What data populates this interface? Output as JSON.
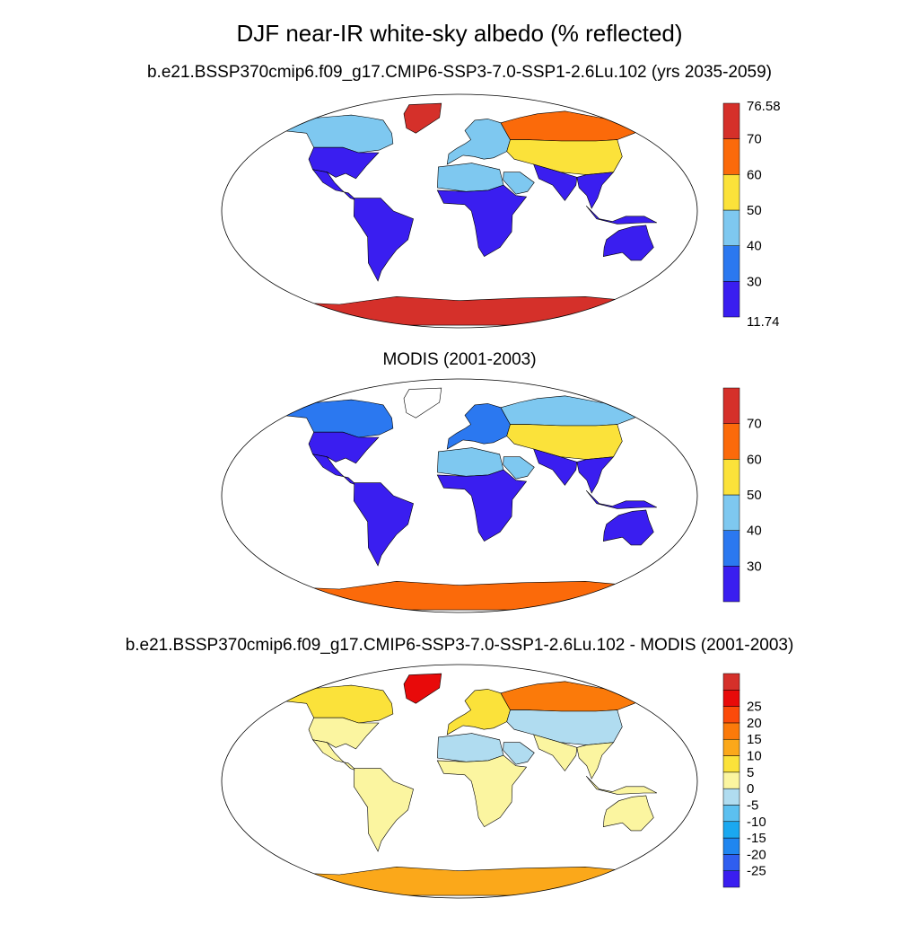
{
  "main_title": "DJF near-IR white-sky albedo (% reflected)",
  "panels": [
    {
      "title": "b.e21.BSSP370cmip6.f09_g17.CMIP6-SSP3-7.0-SSP1-2.6Lu.102 (yrs 2035-2059)",
      "colorbar": {
        "colors": [
          "#3a1ef0",
          "#2b78f0",
          "#7ec8f0",
          "#fbe23a",
          "#fb6a0a",
          "#d5302a"
        ],
        "labels": [
          "11.74",
          "30",
          "40",
          "50",
          "60",
          "70",
          "76.58"
        ]
      }
    },
    {
      "title": "MODIS (2001-2003)",
      "colorbar": {
        "colors": [
          "#3a1ef0",
          "#2b78f0",
          "#7ec8f0",
          "#fbe23a",
          "#fb6a0a",
          "#d5302a"
        ],
        "labels": [
          "30",
          "40",
          "50",
          "60",
          "70"
        ]
      }
    },
    {
      "title": "b.e21.BSSP370cmip6.f09_g17.CMIP6-SSP3-7.0-SSP1-2.6Lu.102 - MODIS (2001-2003)",
      "colorbar": {
        "colors": [
          "#3a1ef0",
          "#2f5ef0",
          "#1f86f0",
          "#1aa8f0",
          "#5cc0f0",
          "#b0dcf0",
          "#fbf5a0",
          "#fbe23a",
          "#fba81a",
          "#fb7a0a",
          "#fb4a0a",
          "#e80a0a",
          "#d5302a"
        ],
        "labels": [
          "-25",
          "-20",
          "-15",
          "-10",
          "-5",
          "0",
          "5",
          "10",
          "15",
          "20",
          "25"
        ]
      }
    }
  ],
  "chart_data": [
    {
      "type": "map",
      "title": "b.e21.BSSP370cmip6.f09_g17.CMIP6-SSP3-7.0-SSP1-2.6Lu.102 (yrs 2035-2059)",
      "projection": "robinson",
      "colorbar_range": [
        11.74,
        76.58
      ],
      "colorbar_levels": [
        30,
        40,
        50,
        60,
        70
      ],
      "regions": {
        "Antarctica": 72,
        "Greenland": 72,
        "Siberia": 62,
        "Central Asia": 52,
        "Sahara": 46,
        "Canada": 40,
        "South America": 15,
        "Central Africa": 15,
        "Australia": 18,
        "Eastern US": 18,
        "India": 18
      }
    },
    {
      "type": "map",
      "title": "MODIS (2001-2003)",
      "projection": "robinson",
      "colorbar_levels": [
        30,
        40,
        50,
        60,
        70
      ],
      "regions": {
        "Antarctica": 62,
        "Greenland": null,
        "Siberia": 42,
        "Central Asia": 52,
        "Sahara": 48,
        "Canada": 38,
        "South America": 15,
        "Central Africa": 15,
        "Australia": 18,
        "Eastern US": 18,
        "India": 18
      }
    },
    {
      "type": "map",
      "title": "b.e21.BSSP370cmip6.f09_g17.CMIP6-SSP3-7.0-SSP1-2.6Lu.102 - MODIS (2001-2003)",
      "projection": "robinson",
      "colorbar_levels": [
        -25,
        -20,
        -15,
        -10,
        -5,
        0,
        5,
        10,
        15,
        20,
        25
      ],
      "regions": {
        "Antarctica": 12,
        "Greenland": 28,
        "Siberia": 17,
        "Central Asia": -3,
        "Sahara": -3,
        "Canada": 8,
        "South America": 3,
        "Central Africa": 3,
        "Australia": 3,
        "Eastern US": 2,
        "India": 3
      }
    }
  ]
}
